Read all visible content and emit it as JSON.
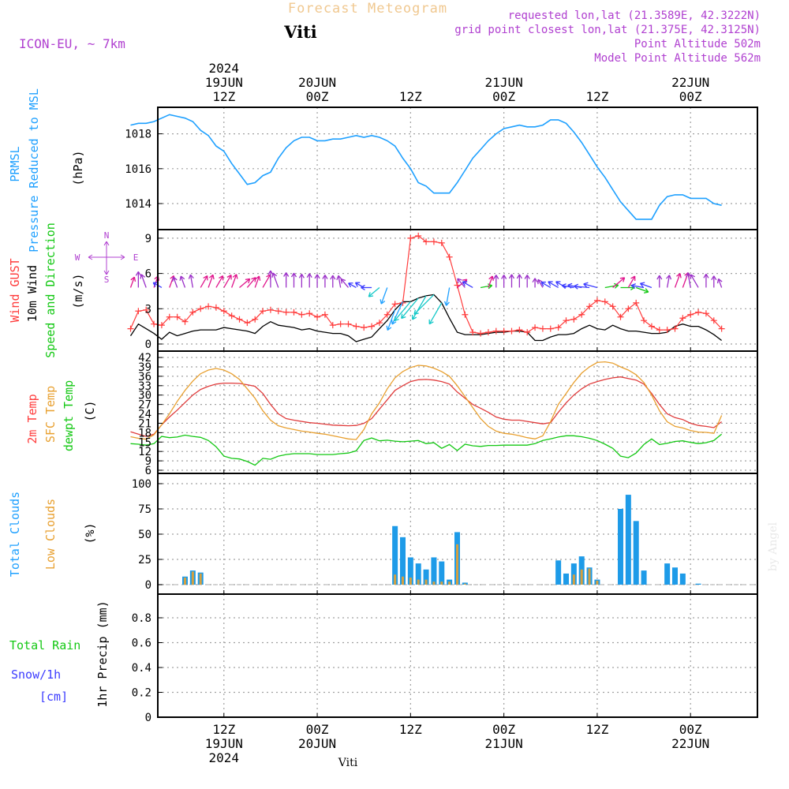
{
  "header": {
    "title": "Forecast Meteogram",
    "location": "Viti",
    "model": "ICON-EU, ~ 7km",
    "requested": "requested lon,lat (21.3589E, 42.3222N)",
    "gridpoint": "grid point closest lon,lat (21.375E, 42.3125N)",
    "point_alt": "Point Altitude 502m",
    "model_alt": "Model Point Altitude 562m",
    "footer_location": "Viti",
    "watermark": "by Angel"
  },
  "colors": {
    "pressure": "#1ea0ff",
    "gust": "#ff3c3c",
    "wind": "#000000",
    "temp": "#e03c3c",
    "sfc": "#e8a030",
    "dewpt": "#14c814",
    "total_cloud": "#1e9be8",
    "low_cloud": "#d4a040",
    "rain": "#14c814",
    "snow": "#3c3cff",
    "meta": "#b040d0",
    "grid": "#a0a0a0"
  },
  "time_axis": {
    "top_labels": [
      {
        "lines": [
          "2024",
          "19JUN",
          "12Z"
        ],
        "hour": 12
      },
      {
        "lines": [
          "20JUN",
          "00Z"
        ],
        "hour": 24
      },
      {
        "lines": [
          "12Z"
        ],
        "hour": 36
      },
      {
        "lines": [
          "21JUN",
          "00Z"
        ],
        "hour": 48
      },
      {
        "lines": [
          "12Z"
        ],
        "hour": 60
      },
      {
        "lines": [
          "22JUN",
          "00Z"
        ],
        "hour": 72
      }
    ],
    "bottom_labels": [
      {
        "lines": [
          "12Z",
          "19JUN",
          "2024"
        ],
        "hour": 12
      },
      {
        "lines": [
          "00Z",
          "20JUN"
        ],
        "hour": 24
      },
      {
        "lines": [
          "12Z"
        ],
        "hour": 36
      },
      {
        "lines": [
          "00Z",
          "21JUN"
        ],
        "hour": 48
      },
      {
        "lines": [
          "12Z"
        ],
        "hour": 60
      },
      {
        "lines": [
          "00Z",
          "22JUN"
        ],
        "hour": 72
      }
    ]
  },
  "panel_labels": {
    "pressure": {
      "name1": "PRMSL",
      "name2": "Pressure Reduced to MSL",
      "unit": "(hPa)"
    },
    "wind": {
      "gust": "Wind GUST",
      "wind10": "10m Wind",
      "speed": "Speed and Direction",
      "unit": "(m/s)",
      "compass_n": "N",
      "compass_s": "S",
      "compass_w": "W",
      "compass_e": "E"
    },
    "temp": {
      "t2m": "2m Temp",
      "sfc": "SFC Temp",
      "dew": "dewpt Temp",
      "unit": "(C)"
    },
    "cloud": {
      "total": "Total Clouds",
      "low": "Low Clouds",
      "unit": "(%)"
    },
    "precip": {
      "rain": "Total  Rain",
      "snow": "Snow/1h",
      "cm": "[cm]",
      "unit": "1hr Precip (mm)"
    }
  },
  "chart_data": [
    {
      "type": "line",
      "name": "pressure",
      "title": "PRMSL Pressure Reduced to MSL",
      "ylabel": "(hPa)",
      "ylim": [
        1012.8,
        1019.5
      ],
      "yticks": [
        1014,
        1016,
        1018
      ],
      "x": [
        0,
        1,
        2,
        3,
        4,
        5,
        6,
        7,
        8,
        9,
        10,
        11,
        12,
        13,
        14,
        15,
        16,
        17,
        18,
        19,
        20,
        21,
        22,
        23,
        24,
        25,
        26,
        27,
        28,
        29,
        30,
        31,
        32,
        33,
        34,
        35,
        36,
        37,
        38,
        39,
        40,
        41,
        42,
        43,
        44,
        45,
        46,
        47,
        48,
        49,
        50,
        51,
        52,
        53,
        54,
        55,
        56,
        57,
        58,
        59,
        60,
        61,
        62,
        63,
        64,
        65,
        66,
        67,
        68,
        69,
        70,
        71,
        72,
        73,
        74,
        75,
        76
      ],
      "series": [
        {
          "name": "PRMSL",
          "values": [
            1018.5,
            1018.6,
            1018.6,
            1018.7,
            1018.9,
            1019.1,
            1019.0,
            1018.9,
            1018.7,
            1018.2,
            1017.9,
            1017.3,
            1017.0,
            1016.3,
            1015.7,
            1015.1,
            1015.2,
            1015.6,
            1015.8,
            1016.6,
            1017.2,
            1017.6,
            1017.8,
            1017.8,
            1017.6,
            1017.6,
            1017.7,
            1017.7,
            1017.8,
            1017.9,
            1017.8,
            1017.9,
            1017.8,
            1017.6,
            1017.3,
            1016.6,
            1016.0,
            1015.2,
            1015.0,
            1014.6,
            1014.6,
            1014.6,
            1015.2,
            1015.9,
            1016.6,
            1017.1,
            1017.6,
            1018.0,
            1018.3,
            1018.4,
            1018.5,
            1018.4,
            1018.4,
            1018.5,
            1018.8,
            1018.8,
            1018.6,
            1018.1,
            1017.5,
            1016.8,
            1016.1,
            1015.5,
            1014.8,
            1014.1,
            1013.6,
            1013.1,
            1013.1,
            1013.1,
            1013.9,
            1014.4,
            1014.5,
            1014.5,
            1014.3,
            1014.3,
            1014.3,
            1014.0,
            1013.9
          ]
        }
      ]
    },
    {
      "type": "line",
      "name": "wind",
      "title": "Wind GUST / 10m Wind Speed and Direction",
      "ylabel": "(m/s)",
      "ylim": [
        0,
        10
      ],
      "yticks": [
        0,
        3,
        6,
        9
      ],
      "x": [
        0,
        1,
        2,
        3,
        4,
        5,
        6,
        7,
        8,
        9,
        10,
        11,
        12,
        13,
        14,
        15,
        16,
        17,
        18,
        19,
        20,
        21,
        22,
        23,
        24,
        25,
        26,
        27,
        28,
        29,
        30,
        31,
        32,
        33,
        34,
        35,
        36,
        37,
        38,
        39,
        40,
        41,
        42,
        43,
        44,
        45,
        46,
        47,
        48,
        49,
        50,
        51,
        52,
        53,
        54,
        55,
        56,
        57,
        58,
        59,
        60,
        61,
        62,
        63,
        64,
        65,
        66,
        67,
        68,
        69,
        70,
        71,
        72,
        73,
        74,
        75,
        76
      ],
      "series": [
        {
          "name": "Wind GUST",
          "values": [
            1.3,
            2.8,
            2.9,
            1.7,
            1.6,
            2.3,
            2.3,
            1.9,
            2.7,
            3.0,
            3.2,
            3.1,
            2.8,
            2.4,
            2.1,
            1.8,
            2.1,
            2.8,
            2.9,
            2.8,
            2.7,
            2.7,
            2.5,
            2.6,
            2.3,
            2.5,
            1.6,
            1.7,
            1.7,
            1.5,
            1.4,
            1.5,
            1.8,
            2.5,
            3.4,
            3.5,
            9.0,
            9.2,
            8.7,
            8.7,
            8.6,
            7.4,
            5.0,
            2.5,
            1.0,
            0.9,
            1.0,
            1.1,
            1.1,
            1.1,
            1.2,
            1.0,
            1.4,
            1.3,
            1.3,
            1.4,
            2.0,
            2.1,
            2.5,
            3.2,
            3.7,
            3.6,
            3.2,
            2.3,
            3.0,
            3.5,
            2.0,
            1.5,
            1.2,
            1.2,
            1.3,
            2.2,
            2.5,
            2.7,
            2.6,
            2.0,
            1.3
          ]
        },
        {
          "name": "10m Wind",
          "values": [
            0.7,
            1.7,
            1.3,
            0.9,
            0.4,
            1.0,
            0.7,
            0.9,
            1.1,
            1.2,
            1.2,
            1.2,
            1.4,
            1.3,
            1.2,
            1.1,
            0.9,
            1.5,
            1.9,
            1.6,
            1.5,
            1.4,
            1.2,
            1.3,
            1.1,
            1.0,
            0.9,
            0.9,
            0.7,
            0.2,
            0.4,
            0.6,
            1.3,
            2.0,
            2.9,
            3.6,
            3.6,
            3.9,
            4.1,
            4.2,
            3.5,
            2.2,
            1.0,
            0.8,
            0.8,
            0.8,
            0.9,
            1.0,
            1.0,
            1.1,
            1.1,
            1.0,
            0.3,
            0.3,
            0.6,
            0.8,
            0.8,
            0.9,
            1.3,
            1.6,
            1.3,
            1.2,
            1.6,
            1.3,
            1.1,
            1.1,
            1.0,
            0.9,
            0.9,
            1.0,
            1.5,
            1.7,
            1.5,
            1.5,
            1.2,
            0.8,
            0.3
          ]
        }
      ]
    },
    {
      "type": "line",
      "name": "temperature",
      "title": "2m Temp / SFC Temp / dewpt Temp",
      "ylabel": "(C)",
      "ylim": [
        6,
        43
      ],
      "yticks": [
        6,
        9,
        12,
        15,
        18,
        21,
        24,
        27,
        30,
        33,
        36,
        39,
        42
      ],
      "x": [
        0,
        1,
        2,
        3,
        4,
        5,
        6,
        7,
        8,
        9,
        10,
        11,
        12,
        13,
        14,
        15,
        16,
        17,
        18,
        19,
        20,
        21,
        22,
        23,
        24,
        25,
        26,
        27,
        28,
        29,
        30,
        31,
        32,
        33,
        34,
        35,
        36,
        37,
        38,
        39,
        40,
        41,
        42,
        43,
        44,
        45,
        46,
        47,
        48,
        49,
        50,
        51,
        52,
        53,
        54,
        55,
        56,
        57,
        58,
        59,
        60,
        61,
        62,
        63,
        64,
        65,
        66,
        67,
        68,
        69,
        70,
        71,
        72,
        73,
        74,
        75,
        76
      ],
      "series": [
        {
          "name": "2m Temp",
          "values": [
            18.3,
            17.5,
            16.8,
            17.5,
            20.5,
            23.0,
            25.2,
            27.6,
            30.0,
            31.8,
            32.8,
            33.5,
            33.8,
            33.8,
            33.7,
            33.3,
            32.8,
            30.5,
            27.0,
            24.0,
            22.5,
            22.0,
            21.6,
            21.2,
            21.0,
            20.7,
            20.4,
            20.3,
            20.2,
            20.3,
            21.0,
            22.5,
            25.5,
            28.5,
            31.5,
            33.0,
            34.3,
            34.9,
            35.0,
            34.8,
            34.3,
            33.5,
            31.0,
            29.0,
            27.0,
            25.8,
            24.5,
            23.0,
            22.3,
            22.0,
            22.0,
            21.6,
            21.2,
            20.8,
            21.2,
            24.5,
            27.5,
            30.0,
            32.0,
            33.5,
            34.3,
            35.0,
            35.5,
            35.8,
            35.3,
            34.8,
            33.5,
            30.5,
            27.0,
            24.0,
            22.8,
            22.2,
            21.0,
            20.3,
            20.0,
            19.6,
            21.5
          ]
        },
        {
          "name": "SFC Temp",
          "values": [
            16.7,
            16.2,
            15.9,
            17.3,
            20.5,
            24.0,
            28.0,
            31.5,
            34.5,
            36.8,
            38.0,
            38.5,
            38.0,
            36.8,
            35.0,
            32.0,
            29.0,
            25.0,
            22.0,
            20.2,
            19.5,
            19.0,
            18.5,
            18.2,
            17.8,
            17.5,
            17.0,
            16.5,
            16.0,
            15.8,
            19.0,
            24.0,
            27.5,
            32.0,
            35.5,
            37.5,
            38.8,
            39.5,
            39.3,
            38.6,
            37.5,
            36.0,
            33.0,
            29.5,
            26.0,
            22.5,
            20.0,
            18.5,
            17.8,
            17.5,
            17.0,
            16.4,
            16.0,
            17.0,
            21.5,
            27.0,
            30.5,
            34.0,
            37.0,
            39.0,
            40.4,
            40.6,
            40.2,
            39.0,
            38.0,
            36.5,
            34.0,
            30.0,
            25.0,
            21.5,
            20.0,
            19.5,
            18.7,
            18.2,
            18.1,
            17.8,
            23.5
          ]
        },
        {
          "name": "dewpt Temp",
          "values": [
            14.5,
            14.3,
            14.0,
            14.5,
            16.8,
            16.4,
            16.6,
            17.2,
            16.8,
            16.5,
            15.5,
            13.5,
            10.5,
            9.8,
            9.6,
            8.8,
            7.6,
            9.8,
            9.5,
            10.5,
            11.0,
            11.3,
            11.3,
            11.3,
            11.0,
            11.0,
            11.0,
            11.3,
            11.5,
            12.2,
            15.5,
            16.3,
            15.4,
            15.6,
            15.3,
            15.1,
            15.3,
            15.5,
            14.5,
            14.8,
            13.0,
            14.2,
            12.3,
            14.3,
            13.8,
            13.6,
            13.9,
            13.9,
            14.0,
            14.0,
            14.0,
            14.0,
            14.5,
            15.5,
            16.0,
            16.6,
            17.0,
            17.0,
            16.7,
            16.2,
            15.5,
            14.3,
            13.0,
            10.5,
            10.0,
            11.5,
            14.2,
            16.0,
            14.2,
            14.6,
            15.2,
            15.4,
            14.9,
            14.5,
            14.8,
            15.5,
            17.5
          ]
        }
      ]
    },
    {
      "type": "bar",
      "name": "clouds",
      "title": "Total Clouds / Low Clouds",
      "ylabel": "(%)",
      "ylim": [
        -4,
        108
      ],
      "yticks": [
        0,
        25,
        50,
        75,
        100
      ],
      "x": [
        7,
        8,
        9,
        34,
        35,
        36,
        37,
        38,
        39,
        40,
        41,
        42,
        43,
        55,
        56,
        57,
        58,
        59,
        60,
        61,
        63,
        64,
        65,
        66,
        67,
        69,
        70,
        71,
        73
      ],
      "series": [
        {
          "name": "Total Clouds",
          "values": [
            8,
            14,
            12,
            58,
            47,
            27,
            21,
            15,
            27,
            23,
            5,
            52,
            2,
            24,
            11,
            21,
            28,
            17,
            5,
            0,
            75,
            89,
            63,
            14,
            0,
            21,
            17,
            11,
            1
          ]
        },
        {
          "name": "Low Clouds",
          "values": [
            7,
            13,
            11,
            10,
            8,
            7,
            5,
            5,
            3,
            3,
            3,
            40,
            1,
            0,
            0,
            10,
            15,
            16,
            4,
            0,
            0,
            0,
            0,
            0,
            0,
            0,
            0,
            0,
            0
          ]
        }
      ]
    },
    {
      "type": "line",
      "name": "precipitation",
      "title": "1hr Precip",
      "ylabel": "1hr Precip (mm)",
      "ylim": [
        0,
        0.98
      ],
      "yticks": [
        0,
        0.2,
        0.4,
        0.6,
        0.8
      ],
      "x": [
        0,
        76
      ],
      "series": [
        {
          "name": "Total Rain",
          "values": [
            0,
            0
          ]
        },
        {
          "name": "Snow/1h",
          "values": [
            0,
            0
          ]
        }
      ]
    }
  ],
  "wind_dirs": [
    200,
    180,
    160,
    200,
    120,
    200,
    160,
    160,
    170,
    210,
    200,
    210,
    210,
    200,
    230,
    220,
    200,
    210,
    180,
    160,
    180,
    180,
    180,
    180,
    180,
    180,
    180,
    170,
    140,
    120,
    120,
    90,
    50,
    20,
    20,
    25,
    40,
    40,
    30,
    45,
    30,
    10,
    230,
    140,
    120,
    260,
    200,
    180,
    180,
    180,
    180,
    180,
    180,
    150,
    120,
    120,
    120,
    100,
    100,
    95,
    105,
    260,
    230,
    270,
    210,
    290,
    100,
    110,
    180,
    190,
    200,
    200,
    170,
    150,
    180,
    180,
    160
  ]
}
